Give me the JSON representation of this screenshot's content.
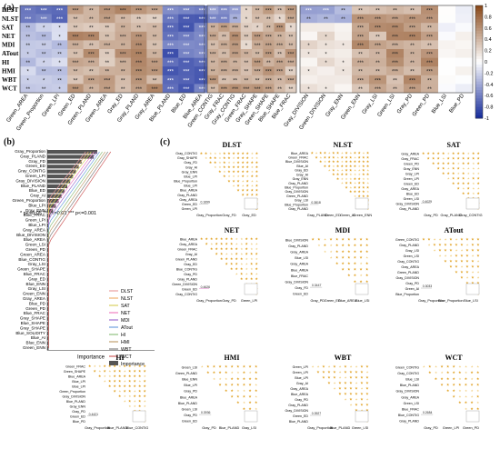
{
  "panel_letters": {
    "a": "(a)",
    "b": "(b)",
    "c": "(c)"
  },
  "heatmap": {
    "rows": [
      "DLST",
      "NLST",
      "SAT",
      "NET",
      "MDI",
      "ATout",
      "HI",
      "HMI",
      "WBT",
      "WCT"
    ],
    "blocks": [
      {
        "name": "block1",
        "cols": [
          "Green_AREA",
          "Green_Proportion",
          "Green_LPI",
          "Green_ED",
          "Green_PLAND",
          "Green_AREA",
          "Gray_ED",
          "Gray_PLAND",
          "Gray_AREA",
          "Blue_PLAND",
          "Blue_ED",
          "Blue_AREA"
        ]
      },
      {
        "name": "block2",
        "cols": [
          "Green_CONTIG",
          "Gray_FRAC",
          "Gray_CONTIG",
          "Green_FRAC",
          "Gray_SHAPE",
          "Green_SHAPE",
          "Blue_SHAPE",
          "Blue_FRAC"
        ]
      },
      {
        "name": "block3",
        "cols": [
          "Gray_DIVISION",
          "Green_DIVISION",
          "Gray_ENN",
          "Green_ENN",
          "Gray_LSI",
          "Green_LSI",
          "Gray_PD",
          "Green_PD",
          "Blue_LSI",
          "Blue_PD"
        ]
      }
    ],
    "colorbar": {
      "ticks": [
        "1",
        "0.8",
        "0.6",
        "0.4",
        "0.2",
        "0",
        "-0.2",
        "-0.4",
        "-0.6",
        "-0.8",
        "-1"
      ],
      "range": [
        -1,
        1
      ],
      "colors": {
        "neg": "#1a2f9c",
        "mid": "#ffffff",
        "pos": "#8a4a1c"
      }
    }
  },
  "importance": {
    "legend_note": "* p<=0.05  ** p<=0.01  *** p<=0.001",
    "xlabel": "Importance",
    "legend": [
      "DLST",
      "NLST",
      "SAT",
      "NET",
      "MDI",
      "ATout",
      "HI",
      "HMI",
      "WBT",
      "WCT",
      "Importance"
    ],
    "line_colors": [
      "#e8a0a0",
      "#f0b070",
      "#d9d060",
      "#f080c0",
      "#a070d0",
      "#70a0e0",
      "#90c080",
      "#c0a070",
      "#808080",
      "#d06060"
    ],
    "labels": [
      "Gray_Proportion",
      "Gray_PLAND",
      "Gray_FD",
      "Green_ED",
      "Gray_CONTIG",
      "Green_LPI",
      "Gray_DIVISION",
      "Blue_PLAND",
      "Blue_ED",
      "Gray_AI",
      "Green_Proportion",
      "Blue_LPI",
      "Gray_ENN",
      "Blue_FRAC",
      "Green_LPI",
      "Blue_LPI",
      "Gray_AREA",
      "Blue_DIVISION",
      "Blue_AREA",
      "Green_LSI",
      "Green_PD",
      "Green_AREA",
      "Blue_CONTIG",
      "Gray_LSI",
      "Green_SHAPE",
      "Blue_FRAC",
      "Gray_ED",
      "Blue_ENN",
      "Gray_LSI",
      "Green_ENN",
      "Gray_AREA",
      "Blue_PD",
      "Green_PD",
      "Blue_FRAC",
      "Gray_SHAPE",
      "Blue_SHAPE",
      "Gray_SHAPE",
      "Blue_SOLIDITY",
      "Blue_AI",
      "Blue_ENN",
      "Green_ENN"
    ]
  },
  "chart_data": {
    "type": "heatmap",
    "title": "",
    "subplots": [
      {
        "title": "DLST",
        "x": [
          "Gray_Proportion",
          "Gray_FD",
          "Gray_ED"
        ],
        "y": [
          "Gray_CONTIG",
          "Gray_SHAPE",
          "Gray_FD",
          "Gray_AI",
          "Gray_ENN",
          "Blue_LPI",
          "Blue_Proportion",
          "Blue_LPI",
          "Blue_AREA",
          "Gray_PLAND",
          "Gray_AREA",
          "Green_ED",
          "Green_LPI"
        ],
        "annotation": "0.1699"
      },
      {
        "title": "NLST",
        "x": [
          "Gray_PLAND",
          "Green_ED",
          "Green_AI",
          "Green_ENN"
        ],
        "y": [
          "Blue_AREA",
          "Green_FRAC",
          "Blue_DIVISION",
          "Blue_AI",
          "Gray_ED",
          "Gray_AI",
          "Gray_ENN",
          "Gray_PLAND",
          "Blue_Proportion",
          "Gray_DIVISION",
          "Green_PLAND",
          "Gray_LSI",
          "Blue_Proportion",
          "Gray_PLAND"
        ],
        "annotation": "0.3818"
      },
      {
        "title": "SAT",
        "x": [
          "Gray_PD",
          "Gray_PLAND",
          "Gray_CONTIG"
        ],
        "y": [
          "Gray_AREA",
          "Gray_FRAC",
          "Green_PD",
          "Gray_ENN",
          "Gray_LPI",
          "Green_LPI",
          "Green_ED",
          "Gray_AREA",
          "Blue_ED",
          "Green_LSI",
          "Gray_DIVISION",
          "Gray_PLAND"
        ],
        "annotation": "0.4029"
      },
      {
        "title": "NET",
        "x": [
          "Gray_Proportion",
          "Gray_PD",
          "Green_LPI"
        ],
        "y": [
          "Blue_AREA",
          "Gray_AREA",
          "Green_FRAC",
          "Gray_AI",
          "Green_PLAND",
          "Gray_ED",
          "Blue_CONTIG",
          "Gray_PD",
          "Gray_PLAND",
          "Green_DIVISION",
          "Green_ED",
          "Gray_CONTIG"
        ],
        "annotation": "0.4626"
      },
      {
        "title": "MDI",
        "x": [
          "Gray_PD",
          "Green_ED",
          "Blue_AREA",
          "Blue_LSI"
        ],
        "y": [
          "Blue_DIVISION",
          "Gray_PLAND",
          "Gray_AREA",
          "Blue_LSI",
          "Gray_AREA",
          "Blue_AREA",
          "Blue_FRAC",
          "Gray_DIVISION",
          "Gray_FD",
          "Green_ED"
        ],
        "annotation": "0.3447"
      },
      {
        "title": "ATout",
        "x": [
          "Gray_Proportion",
          "Blue_Proportion",
          "Blue_LSI"
        ],
        "y": [
          "Green_CONTIG",
          "Gray_PLAND",
          "Gray_LSI",
          "Green_LSI",
          "Gray_CONTIG",
          "Gray_AREA",
          "Green_PLAND",
          "Gray_DIVISION",
          "Gray_PD",
          "Green_AI",
          "Blue_Proportion"
        ],
        "annotation": "0.3033"
      },
      {
        "title": "HI",
        "x": [
          "Gray_Proportion",
          "Blue_PLAND",
          "Blue_CONTIG"
        ],
        "y": [
          "Green_FRAC",
          "Green_SHAPE",
          "Blue_AREA",
          "Blue_LPI",
          "Blue_LPI",
          "Green_Proportion",
          "Gray_DIVISION",
          "Blue_PLAND",
          "Gray_ENN",
          "Gray_PD",
          "Green_ED",
          "Blue_PD"
        ],
        "annotation": "0.4421"
      },
      {
        "title": "HMI",
        "x": [
          "Gray_PD",
          "Blue_PLAND",
          "Gray_LSI"
        ],
        "y": [
          "Green_LSI",
          "Green_PLAND",
          "Blue_ENN",
          "Blue_LPI",
          "Gray_PD",
          "Blue_AREA",
          "Blue_PLAND",
          "Green_LSI",
          "Gray_PD",
          "Green_ED"
        ],
        "annotation": "0.3936"
      },
      {
        "title": "WBT",
        "x": [
          "Gray_Proportion",
          "Blue_PLAND",
          "Green_LSI"
        ],
        "y": [
          "Green_LPI",
          "Green_LPI",
          "Blue_LPI",
          "Gray_AI",
          "Gray_AREA",
          "Blue_AREA",
          "Gray_PD",
          "Gray_PLAND",
          "Gray_DIVISION",
          "Green_ED",
          "Blue_PLAND"
        ],
        "annotation": "0.3927"
      },
      {
        "title": "WCT",
        "x": [
          "Gray_PD",
          "Green_LPI",
          "Green_PD"
        ],
        "y": [
          "Green_CONTIG",
          "Gray_CONTIG",
          "Blue_LSI",
          "Blue_PLAND",
          "Gray_DIVISION",
          "Gray_AREA",
          "Green_LSI",
          "Blue_FRAC",
          "Blue_CONTIG",
          "Gray_PLAND"
        ],
        "annotation": "0.2684"
      }
    ]
  }
}
